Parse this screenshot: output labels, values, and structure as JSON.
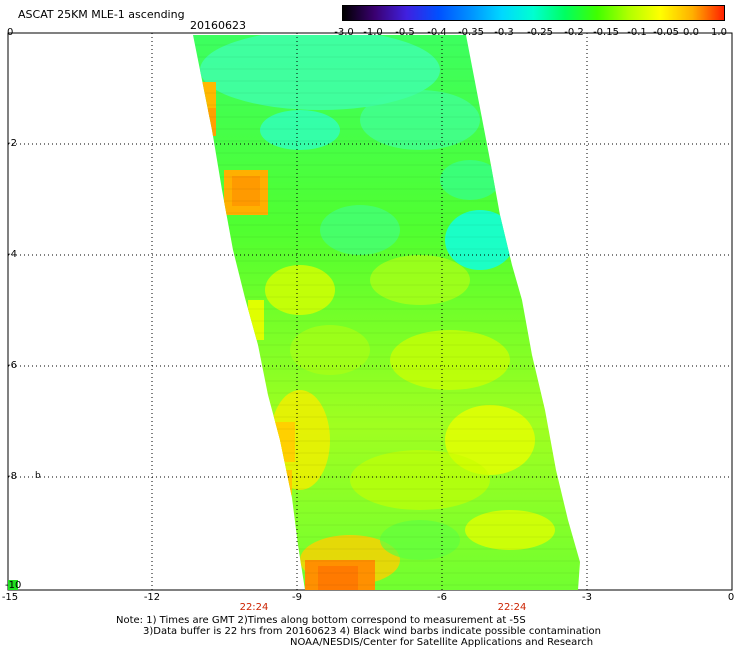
{
  "header": {
    "title": "ASCAT 25KM MLE-1 ascending",
    "date": "20160623"
  },
  "colorbar": {
    "labels": [
      "-3.0",
      "-1.0",
      "-0.5",
      "-0.4",
      "-0.35",
      "-0.3",
      "-0.25",
      "-0.2",
      "-0.15",
      "-0.1",
      "-0.05",
      "0.0",
      "1.0"
    ],
    "stops": [
      "#000000",
      "#3a0070",
      "#4020e0",
      "#0050ff",
      "#0090ff",
      "#00d8ff",
      "#00ffd0",
      "#00ff60",
      "#40ff00",
      "#b0ff00",
      "#ffff00",
      "#ffb000",
      "#ff2000"
    ]
  },
  "axes": {
    "x_ticks": [
      "-15",
      "-12",
      "-9",
      "-6",
      "-3",
      "0"
    ],
    "y_ticks": [
      "0",
      "-2",
      "-4",
      "-6",
      "-8",
      "-10"
    ],
    "x_range": [
      -15,
      0
    ],
    "y_range": [
      -10,
      0
    ]
  },
  "times": [
    "22:24",
    "22:24"
  ],
  "notes": {
    "line1": "Note: 1) Times are GMT 2)Times along bottom correspond to measurement at -5S",
    "line2": "3)Data buffer is 22 hrs from 20160623 4) Black wind barbs indicate possible contamination",
    "line3": "NOAA/NESDIS/Center for Satellite Applications and Research"
  }
}
